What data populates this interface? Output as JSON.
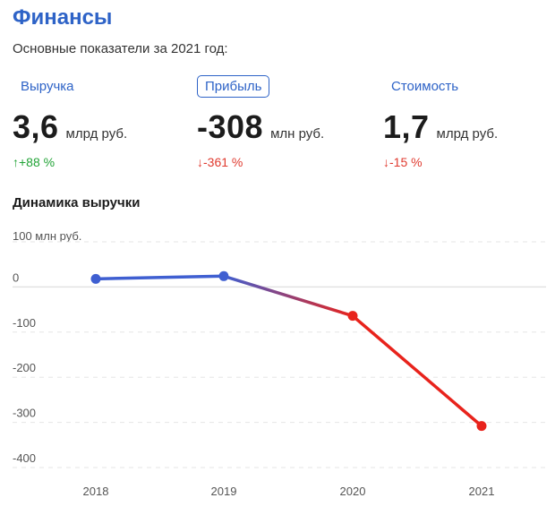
{
  "header": {
    "title": "Финансы",
    "subtitle": "Основные показатели за 2021 год:"
  },
  "metrics": [
    {
      "label": "Выручка",
      "value": "3,6",
      "unit": "млрд руб.",
      "change": "↑+88 %",
      "direction": "up",
      "active": false
    },
    {
      "label": "Прибыль",
      "value": "-308",
      "unit": "млн руб.",
      "change": "↓-361 %",
      "direction": "down",
      "active": true
    },
    {
      "label": "Стоимость",
      "value": "1,7",
      "unit": "млрд руб.",
      "change": "↓-15 %",
      "direction": "down",
      "active": false
    }
  ],
  "chart_section": {
    "title": "Динамика выручки",
    "unit_label": "100 млн руб."
  },
  "colors": {
    "accent": "#2e63c7",
    "positive": "#21a336",
    "negative": "#e03a2f",
    "series_up": "#3f5fd1",
    "series_down": "#e8231c"
  },
  "chart_data": {
    "type": "line",
    "x": [
      "2018",
      "2019",
      "2020",
      "2021"
    ],
    "series": [
      {
        "values": [
          18,
          24,
          -64,
          -308
        ]
      }
    ],
    "ylim": [
      -400,
      100
    ],
    "yticks": [
      0,
      -100,
      -200,
      -300,
      -400
    ],
    "ytick_labels": [
      "0",
      "-100",
      "-200",
      "-300",
      "-400"
    ],
    "grid": true
  }
}
